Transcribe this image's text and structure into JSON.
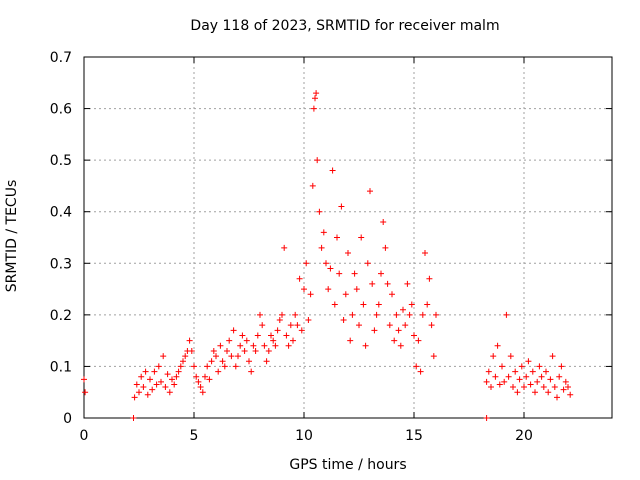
{
  "chart_data": {
    "type": "scatter",
    "title": "Day 118 of 2023, SRMTID for receiver malm",
    "xlabel": "GPS time / hours",
    "ylabel": "SRMTID / TECUs",
    "xlim": [
      0,
      24
    ],
    "ylim": [
      0,
      0.7
    ],
    "xticks": [
      0,
      5,
      10,
      15,
      20
    ],
    "yticks": [
      0,
      0.1,
      0.2,
      0.3,
      0.4,
      0.5,
      0.6,
      0.7
    ],
    "grid": true,
    "marker": "+",
    "color": "#ff0000",
    "series": [
      {
        "name": "SRMTID",
        "points": [
          [
            0.0,
            0.075
          ],
          [
            0.05,
            0.05
          ],
          [
            2.25,
            0.0
          ],
          [
            18.3,
            0.0
          ],
          [
            2.3,
            0.04
          ],
          [
            2.4,
            0.065
          ],
          [
            2.5,
            0.05
          ],
          [
            2.6,
            0.08
          ],
          [
            2.7,
            0.06
          ],
          [
            2.8,
            0.09
          ],
          [
            2.9,
            0.045
          ],
          [
            3.0,
            0.075
          ],
          [
            3.1,
            0.055
          ],
          [
            3.2,
            0.09
          ],
          [
            3.3,
            0.065
          ],
          [
            3.4,
            0.1
          ],
          [
            3.5,
            0.07
          ],
          [
            3.6,
            0.12
          ],
          [
            3.7,
            0.06
          ],
          [
            3.8,
            0.085
          ],
          [
            3.9,
            0.05
          ],
          [
            4.0,
            0.075
          ],
          [
            4.1,
            0.065
          ],
          [
            4.2,
            0.08
          ],
          [
            4.3,
            0.09
          ],
          [
            4.4,
            0.1
          ],
          [
            4.5,
            0.11
          ],
          [
            4.6,
            0.12
          ],
          [
            4.7,
            0.13
          ],
          [
            4.8,
            0.15
          ],
          [
            4.9,
            0.13
          ],
          [
            5.0,
            0.1
          ],
          [
            5.1,
            0.08
          ],
          [
            5.2,
            0.07
          ],
          [
            5.3,
            0.06
          ],
          [
            5.4,
            0.05
          ],
          [
            5.5,
            0.08
          ],
          [
            5.6,
            0.1
          ],
          [
            5.7,
            0.075
          ],
          [
            5.8,
            0.11
          ],
          [
            5.9,
            0.13
          ],
          [
            6.0,
            0.12
          ],
          [
            6.1,
            0.09
          ],
          [
            6.2,
            0.14
          ],
          [
            6.3,
            0.11
          ],
          [
            6.4,
            0.1
          ],
          [
            6.5,
            0.13
          ],
          [
            6.6,
            0.15
          ],
          [
            6.7,
            0.12
          ],
          [
            6.8,
            0.17
          ],
          [
            6.9,
            0.1
          ],
          [
            7.0,
            0.12
          ],
          [
            7.1,
            0.14
          ],
          [
            7.2,
            0.16
          ],
          [
            7.3,
            0.13
          ],
          [
            7.4,
            0.15
          ],
          [
            7.5,
            0.11
          ],
          [
            7.6,
            0.09
          ],
          [
            7.7,
            0.14
          ],
          [
            7.8,
            0.13
          ],
          [
            7.9,
            0.16
          ],
          [
            8.0,
            0.2
          ],
          [
            8.1,
            0.18
          ],
          [
            8.2,
            0.14
          ],
          [
            8.3,
            0.11
          ],
          [
            8.4,
            0.13
          ],
          [
            8.5,
            0.16
          ],
          [
            8.6,
            0.15
          ],
          [
            8.7,
            0.14
          ],
          [
            8.8,
            0.17
          ],
          [
            8.9,
            0.19
          ],
          [
            9.0,
            0.2
          ],
          [
            9.1,
            0.33
          ],
          [
            9.2,
            0.16
          ],
          [
            9.3,
            0.14
          ],
          [
            9.4,
            0.18
          ],
          [
            9.5,
            0.15
          ],
          [
            9.6,
            0.2
          ],
          [
            9.7,
            0.18
          ],
          [
            9.8,
            0.27
          ],
          [
            9.9,
            0.17
          ],
          [
            10.0,
            0.25
          ],
          [
            10.1,
            0.3
          ],
          [
            10.2,
            0.19
          ],
          [
            10.3,
            0.24
          ],
          [
            10.4,
            0.45
          ],
          [
            10.45,
            0.6
          ],
          [
            10.5,
            0.62
          ],
          [
            10.55,
            0.63
          ],
          [
            10.6,
            0.5
          ],
          [
            10.7,
            0.4
          ],
          [
            10.8,
            0.33
          ],
          [
            10.9,
            0.36
          ],
          [
            11.0,
            0.3
          ],
          [
            11.1,
            0.25
          ],
          [
            11.2,
            0.29
          ],
          [
            11.3,
            0.48
          ],
          [
            11.4,
            0.22
          ],
          [
            11.5,
            0.35
          ],
          [
            11.6,
            0.28
          ],
          [
            11.7,
            0.41
          ],
          [
            11.8,
            0.19
          ],
          [
            11.9,
            0.24
          ],
          [
            12.0,
            0.32
          ],
          [
            12.1,
            0.15
          ],
          [
            12.2,
            0.2
          ],
          [
            12.3,
            0.28
          ],
          [
            12.4,
            0.25
          ],
          [
            12.5,
            0.18
          ],
          [
            12.6,
            0.35
          ],
          [
            12.7,
            0.22
          ],
          [
            12.8,
            0.14
          ],
          [
            12.9,
            0.3
          ],
          [
            13.0,
            0.44
          ],
          [
            13.1,
            0.26
          ],
          [
            13.2,
            0.17
          ],
          [
            13.3,
            0.2
          ],
          [
            13.4,
            0.22
          ],
          [
            13.5,
            0.28
          ],
          [
            13.6,
            0.38
          ],
          [
            13.7,
            0.33
          ],
          [
            13.8,
            0.26
          ],
          [
            13.9,
            0.18
          ],
          [
            14.0,
            0.24
          ],
          [
            14.1,
            0.15
          ],
          [
            14.2,
            0.2
          ],
          [
            14.3,
            0.17
          ],
          [
            14.4,
            0.14
          ],
          [
            14.5,
            0.21
          ],
          [
            14.6,
            0.18
          ],
          [
            14.7,
            0.26
          ],
          [
            14.8,
            0.2
          ],
          [
            14.9,
            0.22
          ],
          [
            15.0,
            0.16
          ],
          [
            15.1,
            0.1
          ],
          [
            15.2,
            0.15
          ],
          [
            15.3,
            0.09
          ],
          [
            15.4,
            0.2
          ],
          [
            15.5,
            0.32
          ],
          [
            15.6,
            0.22
          ],
          [
            15.7,
            0.27
          ],
          [
            15.8,
            0.18
          ],
          [
            15.9,
            0.12
          ],
          [
            16.0,
            0.2
          ],
          [
            18.3,
            0.07
          ],
          [
            18.4,
            0.09
          ],
          [
            18.5,
            0.06
          ],
          [
            18.6,
            0.12
          ],
          [
            18.7,
            0.08
          ],
          [
            18.8,
            0.14
          ],
          [
            18.9,
            0.065
          ],
          [
            19.0,
            0.1
          ],
          [
            19.1,
            0.07
          ],
          [
            19.2,
            0.2
          ],
          [
            19.3,
            0.08
          ],
          [
            19.4,
            0.12
          ],
          [
            19.5,
            0.06
          ],
          [
            19.6,
            0.09
          ],
          [
            19.7,
            0.05
          ],
          [
            19.8,
            0.075
          ],
          [
            19.9,
            0.1
          ],
          [
            20.0,
            0.06
          ],
          [
            20.1,
            0.08
          ],
          [
            20.2,
            0.11
          ],
          [
            20.3,
            0.065
          ],
          [
            20.4,
            0.09
          ],
          [
            20.5,
            0.05
          ],
          [
            20.6,
            0.07
          ],
          [
            20.7,
            0.1
          ],
          [
            20.8,
            0.08
          ],
          [
            20.9,
            0.06
          ],
          [
            21.0,
            0.09
          ],
          [
            21.1,
            0.05
          ],
          [
            21.2,
            0.075
          ],
          [
            21.3,
            0.12
          ],
          [
            21.4,
            0.06
          ],
          [
            21.5,
            0.04
          ],
          [
            21.6,
            0.08
          ],
          [
            21.7,
            0.1
          ],
          [
            21.8,
            0.055
          ],
          [
            21.9,
            0.07
          ],
          [
            22.0,
            0.06
          ],
          [
            22.1,
            0.045
          ]
        ]
      }
    ]
  }
}
